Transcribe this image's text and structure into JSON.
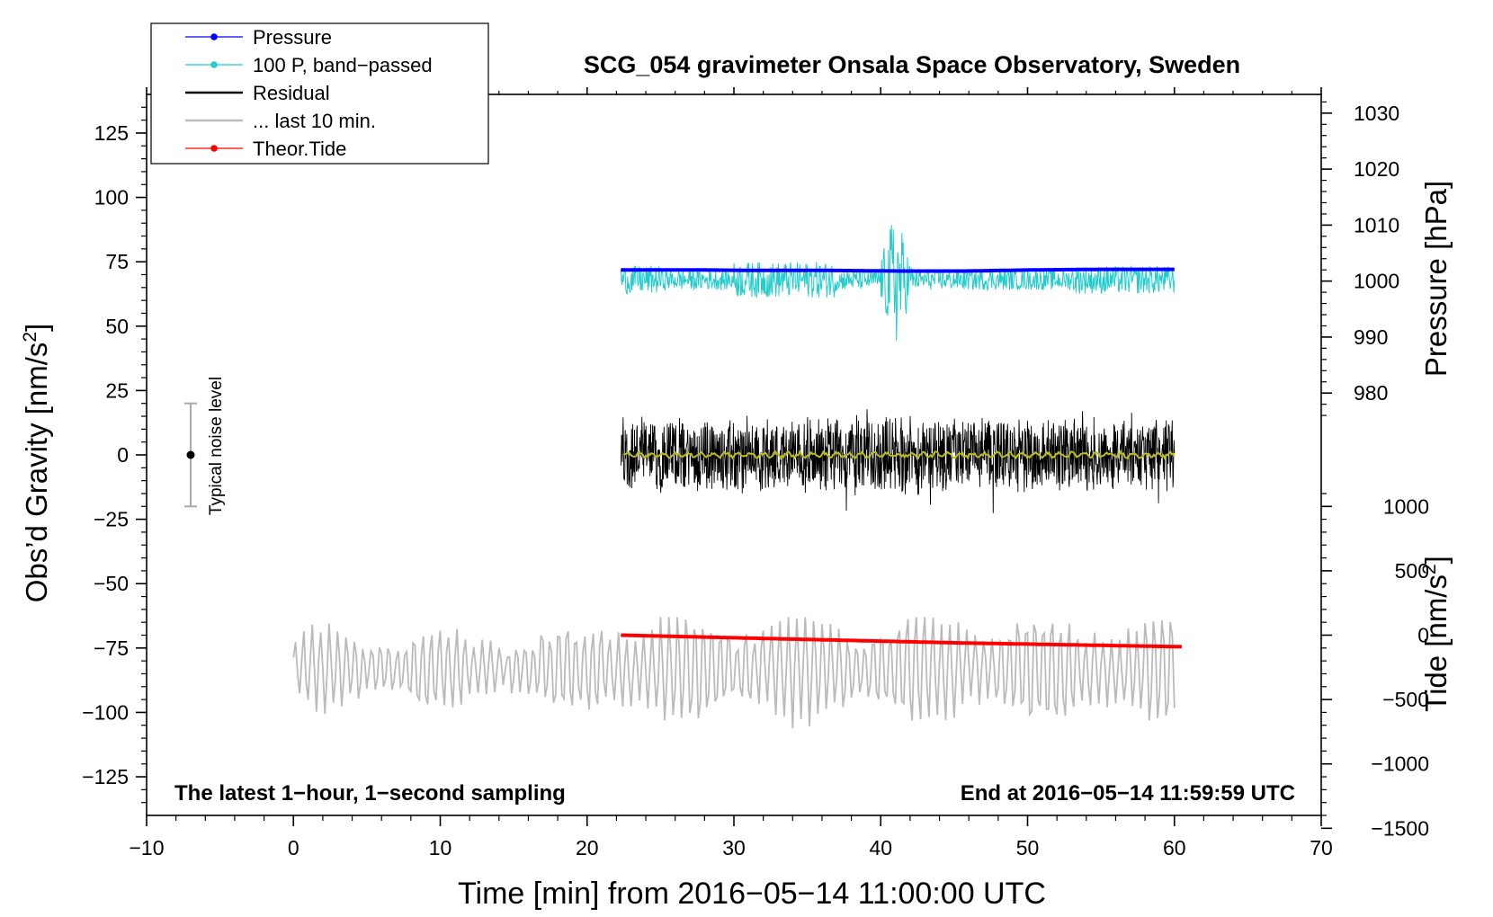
{
  "chart_data": {
    "type": "line",
    "title": "SCG_054 gravimeter Onsala Space Observatory, Sweden",
    "xlabel": "Time [min] from 2016−05−14 11:00:00 UTC",
    "ylabel": "Obs’d Gravity [nm/s",
    "ylabel_sup": "2",
    "ylabel_close": "]",
    "right_upper_label": "Pressure [hPa]",
    "right_lower_label": "Tide [nm/s",
    "right_lower_label_sup": "2",
    "right_lower_label_close": "]",
    "xlim": [
      -10,
      70
    ],
    "ylim": [
      -140,
      140
    ],
    "x_ticks": [
      -10,
      0,
      10,
      20,
      30,
      40,
      50,
      60,
      70
    ],
    "x_tick_labels": [
      "−10",
      "0",
      "10",
      "20",
      "30",
      "40",
      "50",
      "60",
      "70"
    ],
    "y_ticks": [
      125,
      100,
      75,
      50,
      25,
      0,
      -25,
      -50,
      -75,
      -100,
      -125
    ],
    "y_tick_labels": [
      "125",
      "100",
      "75",
      "50",
      "25",
      "0",
      "−25",
      "−50",
      "−75",
      "−100",
      "−125"
    ],
    "pressure_axis": {
      "ticks": [
        1030,
        1020,
        1010,
        1000,
        990,
        980
      ],
      "tick_labels": [
        "1030",
        "1020",
        "1010",
        "1000",
        "990",
        "980"
      ],
      "gravity_per_hpa": 2.174,
      "gravity_at_1000": 67.5
    },
    "tide_axis": {
      "ticks": [
        1000,
        500,
        0,
        -500,
        -1000,
        -1500
      ],
      "tick_labels": [
        "1000",
        "500",
        "0",
        "−500",
        "−1000",
        "−1500"
      ],
      "gravity_per_unit": 0.05,
      "gravity_at_0": -70
    },
    "legend": {
      "position": "top-left",
      "entries": [
        {
          "label": "Pressure",
          "color": "#0000ff",
          "marker": true
        },
        {
          "label": "100 P, band−passed",
          "color": "#22cccc",
          "marker": true
        },
        {
          "label": "Residual",
          "color": "#000000",
          "marker": false
        },
        {
          "label": "... last 10 min.",
          "color": "#bbbbbb",
          "marker": false
        },
        {
          "label": "Theor.Tide",
          "color": "#ff0000",
          "marker": true
        }
      ]
    },
    "noise_level": {
      "label": "Typical noise level",
      "x": -7,
      "center": 0,
      "half_range": 20
    },
    "annotations": {
      "left": "The latest 1−hour, 1−second sampling",
      "right": "End at 2016−05−14 11:59:59 UTC"
    },
    "series": [
      {
        "name": "Pressure",
        "color": "#0000ff",
        "x_range": [
          22.3,
          60
        ],
        "values_hpa": [
          1002.0,
          1002.0,
          1001.9,
          1001.9,
          1001.8,
          1001.8,
          1002.0,
          1002.1,
          1002.1
        ]
      },
      {
        "name": "100 P, band−passed",
        "color": "#22cccc",
        "x_range": [
          22.3,
          60
        ],
        "baseline": 68,
        "amplitude": 4,
        "peak_x": 41,
        "peak_max": 95,
        "peak_min": 35
      },
      {
        "name": "Residual",
        "color": "#000000",
        "x_range": [
          22.3,
          60
        ],
        "baseline": 0,
        "amplitude_range": [
          -25,
          27
        ]
      },
      {
        "name": "Residual smoothed",
        "color": "#bbbb22",
        "x_range": [
          22.5,
          60
        ],
        "baseline": 0
      },
      {
        "name": "... last 10 min.",
        "color": "#bbbbbb",
        "x_range": [
          0,
          60
        ],
        "baseline": -83,
        "amplitude_range": [
          -110,
          -63
        ]
      },
      {
        "name": "Theor.Tide",
        "color": "#ff0000",
        "x_range": [
          22.3,
          60.5
        ],
        "tide_values": [
          0,
          -20,
          -40,
          -60,
          -75,
          -90
        ]
      }
    ]
  },
  "colors": {
    "pressure": "#0000ff",
    "bandpassed": "#22cccc",
    "residual": "#000000",
    "smoothed": "#bbbb22",
    "last10": "#bbbbbb",
    "tide": "#ff0000",
    "noise": "#aaaaaa"
  }
}
